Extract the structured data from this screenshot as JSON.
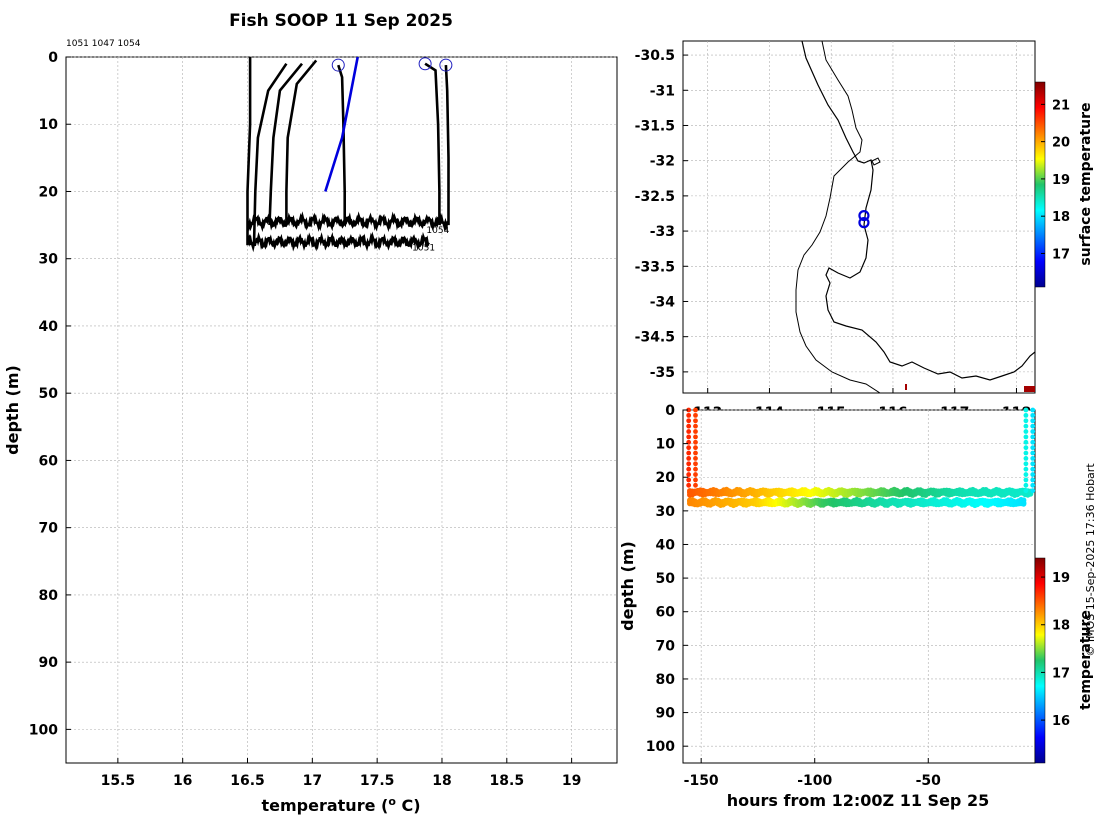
{
  "title": "Fish SOOP 11 Sep 2025",
  "credit": "© IMOS 15-Sep-2025 17:36 Hobart",
  "colors": {
    "profile": "#000000",
    "highlight": "#0000dd",
    "marker": "#1f1fbf",
    "coast": "#000000",
    "grid": "#b0b0b0"
  },
  "chart_data": [
    {
      "type": "line",
      "name": "profiles",
      "header": "1051 1047 1054",
      "xlabel": "temperature (o C)",
      "ylabel": "depth (m)",
      "xlim": [
        15.1,
        19.35
      ],
      "ylim": [
        105,
        0
      ],
      "xticks": [
        15.5,
        16,
        16.5,
        17,
        17.5,
        18,
        18.5,
        19
      ],
      "yticks": [
        0,
        10,
        20,
        30,
        40,
        50,
        60,
        70,
        80,
        90,
        100
      ],
      "grid": true,
      "series": [
        {
          "color": "#000000",
          "points": [
            [
              16.52,
              0
            ],
            [
              16.52,
              10
            ],
            [
              16.5,
              20
            ],
            [
              16.5,
              28
            ]
          ]
        },
        {
          "color": "#000000",
          "points": [
            [
              16.8,
              1
            ],
            [
              16.66,
              5
            ],
            [
              16.58,
              12
            ],
            [
              16.56,
              20
            ],
            [
              16.55,
              28
            ]
          ]
        },
        {
          "color": "#000000",
          "points": [
            [
              16.92,
              1
            ],
            [
              16.75,
              5
            ],
            [
              16.7,
              12
            ],
            [
              16.68,
              20
            ],
            [
              16.67,
              25
            ]
          ]
        },
        {
          "color": "#000000",
          "points": [
            [
              17.03,
              0.5
            ],
            [
              16.88,
              4
            ],
            [
              16.81,
              12
            ],
            [
              16.8,
              20
            ],
            [
              16.8,
              25
            ]
          ]
        },
        {
          "color": "#000000",
          "points": [
            [
              17.2,
              1.2
            ],
            [
              17.23,
              3
            ],
            [
              17.24,
              10
            ],
            [
              17.25,
              20
            ],
            [
              17.25,
              25
            ]
          ]
        },
        {
          "color": "#000000",
          "points": [
            [
              17.87,
              1
            ],
            [
              17.95,
              2
            ],
            [
              17.97,
              10
            ],
            [
              17.98,
              20
            ],
            [
              17.98,
              25
            ]
          ]
        },
        {
          "color": "#000000",
          "points": [
            [
              18.03,
              1.2
            ],
            [
              18.04,
              5
            ],
            [
              18.05,
              15
            ],
            [
              18.05,
              25
            ]
          ]
        },
        {
          "color": "#0000dd",
          "points": [
            [
              17.35,
              0
            ],
            [
              17.3,
              5
            ],
            [
              17.23,
              12
            ],
            [
              17.1,
              20
            ]
          ]
        }
      ],
      "near_bottom_bands": [
        {
          "x_range": [
            16.5,
            18.05
          ],
          "depth": 24.5
        },
        {
          "x_range": [
            16.5,
            17.9
          ],
          "depth": 27.5
        }
      ],
      "surface_markers": [
        [
          17.2,
          1.2
        ],
        [
          17.87,
          1
        ],
        [
          18.03,
          1.2
        ]
      ],
      "annotations": [
        {
          "text": "1054",
          "x": 17.88,
          "y": 26.2
        },
        {
          "text": "1051",
          "x": 17.77,
          "y": 28.8
        }
      ]
    },
    {
      "type": "scatter",
      "name": "map",
      "xlim": [
        112.6,
        118.3
      ],
      "ylim": [
        -35.3,
        -30.3
      ],
      "xticks": [
        113,
        114,
        115,
        116,
        117,
        118
      ],
      "yticks": [
        -30.5,
        -31,
        -31.5,
        -32,
        -32.5,
        -33,
        -33.5,
        -34,
        -34.5,
        -35
      ],
      "grid": true,
      "locations": [
        [
          115.53,
          -32.78
        ],
        [
          115.53,
          -32.88
        ]
      ],
      "colorbar": {
        "label": "surface temperature",
        "range": [
          16.1,
          21.6
        ],
        "ticks": [
          17,
          18,
          19,
          20,
          21
        ]
      }
    },
    {
      "type": "scatter",
      "name": "depth-time",
      "xlabel": "hours from 12:00Z 11 Sep 25",
      "ylabel": "depth (m)",
      "xlim": [
        -158,
        -3
      ],
      "ylim": [
        105,
        0
      ],
      "xticks": [
        -150,
        -100,
        -50
      ],
      "yticks": [
        0,
        10,
        20,
        30,
        40,
        50,
        60,
        70,
        80,
        90,
        100
      ],
      "grid": true,
      "colorbar": {
        "label": "temperature",
        "range": [
          15.1,
          19.4
        ],
        "ticks": [
          16,
          17,
          18,
          19
        ]
      },
      "descent_columns": [
        {
          "hours": -155.5,
          "depth_range": [
            0,
            24
          ],
          "temperature": 18.7
        },
        {
          "hours": -152.5,
          "depth_range": [
            0,
            24
          ],
          "temperature": 18.6
        },
        {
          "hours": -7,
          "depth_range": [
            0,
            25
          ],
          "temperature": 16.8
        },
        {
          "hours": -4,
          "depth_range": [
            0,
            25
          ],
          "temperature": 16.6
        }
      ],
      "bands": [
        {
          "hours": [
            -155,
            -5
          ],
          "depth": 24.5,
          "temperature": [
            18.5,
            18.1,
            17.7,
            17.3,
            17.0,
            16.9
          ]
        },
        {
          "hours": [
            -155,
            -8
          ],
          "depth": 27.5,
          "temperature": [
            18.3,
            18.0,
            17.3,
            17.0,
            16.8,
            16.6
          ]
        }
      ]
    }
  ]
}
